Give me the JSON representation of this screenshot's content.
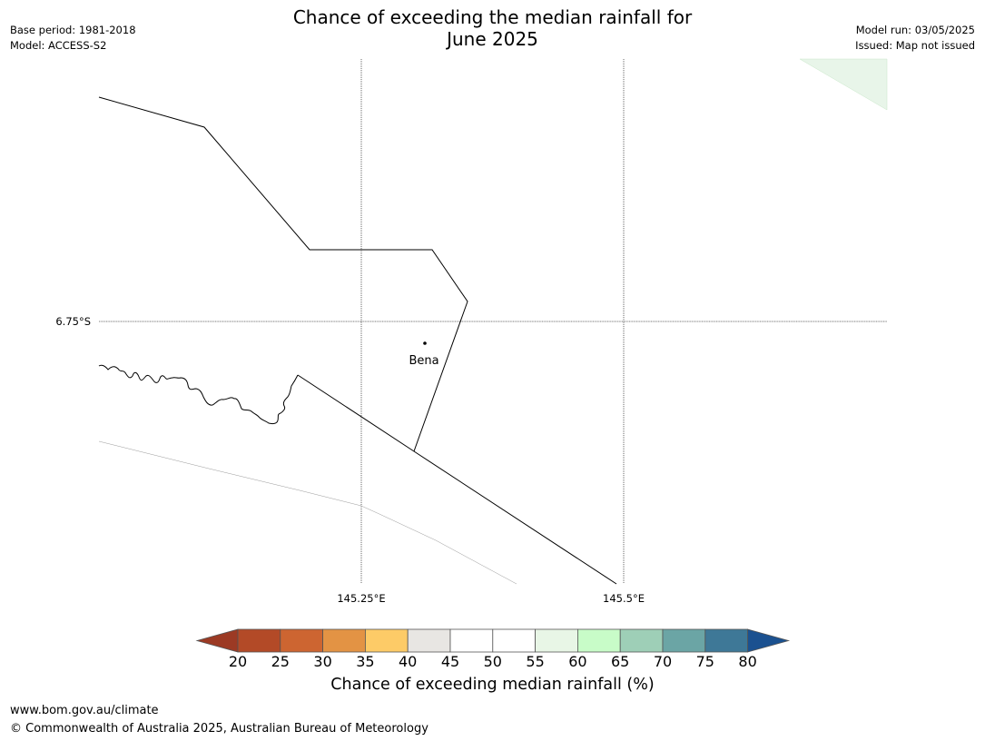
{
  "title": {
    "line1": "Chance of exceeding the median rainfall for",
    "line2": "June 2025"
  },
  "meta_left": {
    "base_period": "Base period: 1981-2018",
    "model": "Model: ACCESS-S2"
  },
  "meta_right": {
    "model_run": "Model run: 03/05/2025",
    "issued": "Issued: Map not issued"
  },
  "map": {
    "lat_label": "6.75°S",
    "lon_labels": [
      "145.25°E",
      "145.5°E"
    ],
    "place": {
      "name": "Bena"
    },
    "colors": {
      "boundary": "#000000",
      "grid": "#000000",
      "shade_60_65": "#e8f5e9"
    }
  },
  "colorbar": {
    "title": "Chance of exceeding median rainfall (%)",
    "ticks": [
      "20",
      "25",
      "30",
      "35",
      "40",
      "45",
      "50",
      "55",
      "60",
      "65",
      "70",
      "75",
      "80"
    ],
    "colors": [
      "#9c3a24",
      "#b34a27",
      "#cd6531",
      "#e39344",
      "#fdcb67",
      "#e8e6e3",
      "#ffffff",
      "#ffffff",
      "#e8f6e6",
      "#c8fcc8",
      "#9ecfb7",
      "#6ba5a5",
      "#3e7897",
      "#1b5190"
    ]
  },
  "footer": {
    "url": "www.bom.gov.au/climate",
    "copyright": "© Commonwealth of Australia 2025, Australian Bureau of Meteorology"
  }
}
